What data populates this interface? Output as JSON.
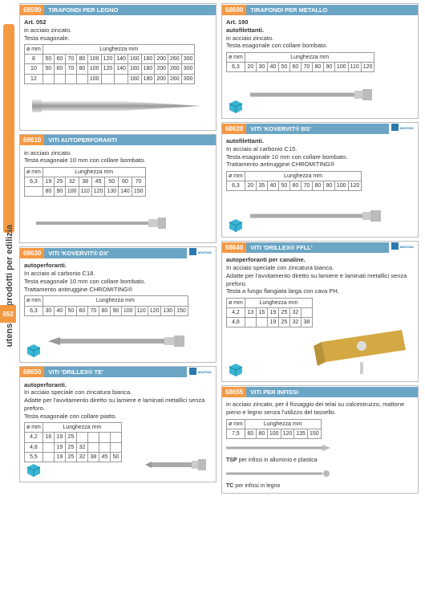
{
  "side": {
    "text": "utensili e prodotti per edilizia",
    "page": "652"
  },
  "colors": {
    "orange": "#f59842",
    "blue": "#6ba5c5",
    "border": "#bbb",
    "grid": "#999"
  },
  "brand": "MUSTAD",
  "boxes": {
    "b1": {
      "code": "68590",
      "title": "TIRAFONDI PER LEGNO",
      "art": "Art. 052",
      "d1": "in acciaio zincato.",
      "d2": "Testa esagonale.",
      "diams": [
        "8",
        "10",
        "12"
      ],
      "rowLbl": "ø mm",
      "colLbl": "Lunghezza mm",
      "r1": [
        "50",
        "60",
        "70",
        "80",
        "100",
        "120",
        "140",
        "160",
        "180",
        "200",
        "260",
        "300"
      ],
      "r2": [
        "50",
        "60",
        "70",
        "80",
        "100",
        "120",
        "140",
        "160",
        "180",
        "200",
        "260",
        "300"
      ],
      "r3": [
        "",
        "",
        "",
        "",
        "100",
        "",
        "",
        "160",
        "180",
        "200",
        "260",
        "300"
      ]
    },
    "b2": {
      "code": "68600",
      "title": "TIRAFONDI PER METALLO",
      "art": "Art. 190",
      "b": "autofilettanti.",
      "d1": "in acciaio zincato.",
      "d2": "Testa esagonale con collare bombato.",
      "diams": [
        "6,3"
      ],
      "rowLbl": "ø mm",
      "colLbl": "Lunghezza mm",
      "r1": [
        "20",
        "30",
        "40",
        "50",
        "60",
        "70",
        "80",
        "90",
        "100",
        "110",
        "120"
      ]
    },
    "b3": {
      "code": "68610",
      "title": "VITI AUTOPERFORANTI",
      "d1": "in acciaio zincato.",
      "d2": "Testa esagonale 10 mm con collare bombato.",
      "diams": [
        "6,3"
      ],
      "rowLbl": "ø mm",
      "colLbl": "Lunghezza mm",
      "r1": [
        "19",
        "25",
        "32",
        "38",
        "45",
        "50",
        "60",
        "70"
      ],
      "r2": [
        "80",
        "90",
        "100",
        "110",
        "120",
        "130",
        "140",
        "150"
      ]
    },
    "b4": {
      "code": "68620",
      "title": "VITI 'KOVERVIT® BS'",
      "b": "autofilettanti.",
      "d1": "In acciaio al carbonio C15.",
      "d2": "Testa esagonale 10 mm con collare bombato.",
      "d3": "Trattamento antiruggine CHROMITING®",
      "diams": [
        "6,3"
      ],
      "rowLbl": "ø mm",
      "colLbl": "Lunghezza mm",
      "r1": [
        "20",
        "35",
        "40",
        "50",
        "60",
        "70",
        "80",
        "90",
        "100",
        "120"
      ]
    },
    "b5": {
      "code": "68630",
      "title": "VITI 'KOVERVIT® DX'",
      "b": "autoperforanti.",
      "d1": "In acciaio al carbonio C18.",
      "d2": "Testa esagonale 10 mm con collare bombato.",
      "d3": "Trattamento antiruggine CHROMITING®",
      "diams": [
        "6,3"
      ],
      "rowLbl": "ø mm",
      "colLbl": "Lunghezza mm",
      "r1": [
        "30",
        "40",
        "50",
        "60",
        "70",
        "80",
        "90",
        "100",
        "110",
        "120",
        "130",
        "150"
      ]
    },
    "b6": {
      "code": "68640",
      "title": "VITI 'DRILLEX® FFLL'",
      "b": "autoperforanti per canaline.",
      "d1": "In acciaio speciale con zincatura bianca.",
      "d2": "Adatte per l'avvitamento diretto su lamiere e laminati metallici senza preforo.",
      "d3": "Testa a fungo flangiata larga con cava PH.",
      "diams": [
        "4,2",
        "4,8"
      ],
      "rowLbl": "ø mm",
      "colLbl": "Lunghezza mm",
      "r1": [
        "13",
        "16",
        "19",
        "25",
        "32"
      ],
      "r2": [
        "",
        "",
        "19",
        "25",
        "32",
        "38"
      ]
    },
    "b7": {
      "code": "68650",
      "title": "VITI 'DRILLEX® TE'",
      "b": "autoperforanti.",
      "d1": "In acciaio speciale con zincatura bianca.",
      "d2": "Adatte per l'avvitamento diretto su lamiere e laminati metallici senza preforo.",
      "d3": "Testa esagonale con collare piatto.",
      "diams": [
        "4,2",
        "4,8",
        "5,5"
      ],
      "rowLbl": "ø mm",
      "colLbl": "Lunghezza mm",
      "r1": [
        "16",
        "19",
        "25",
        "",
        "",
        ""
      ],
      "r2": [
        "",
        "19",
        "25",
        "32",
        "",
        ""
      ],
      "r3": [
        "",
        "19",
        "25",
        "32",
        "38",
        "45",
        "50"
      ]
    },
    "b8": {
      "code": "68655",
      "title": "VITI PER INFISSI",
      "d1": "in acciaio zincato, per il fissaggio dei telai su calcestruzzo, mattone pieno e legno senza l'utilizzo del tassello.",
      "diams": [
        "7,5"
      ],
      "rowLbl": "ø mm",
      "colLbl": "Lunghezza mm",
      "r1": [
        "60",
        "80",
        "100",
        "120",
        "135",
        "150"
      ],
      "f1": "TSP per infissi in alluminio e plastica",
      "f2": "TC per infissi in legno"
    }
  }
}
